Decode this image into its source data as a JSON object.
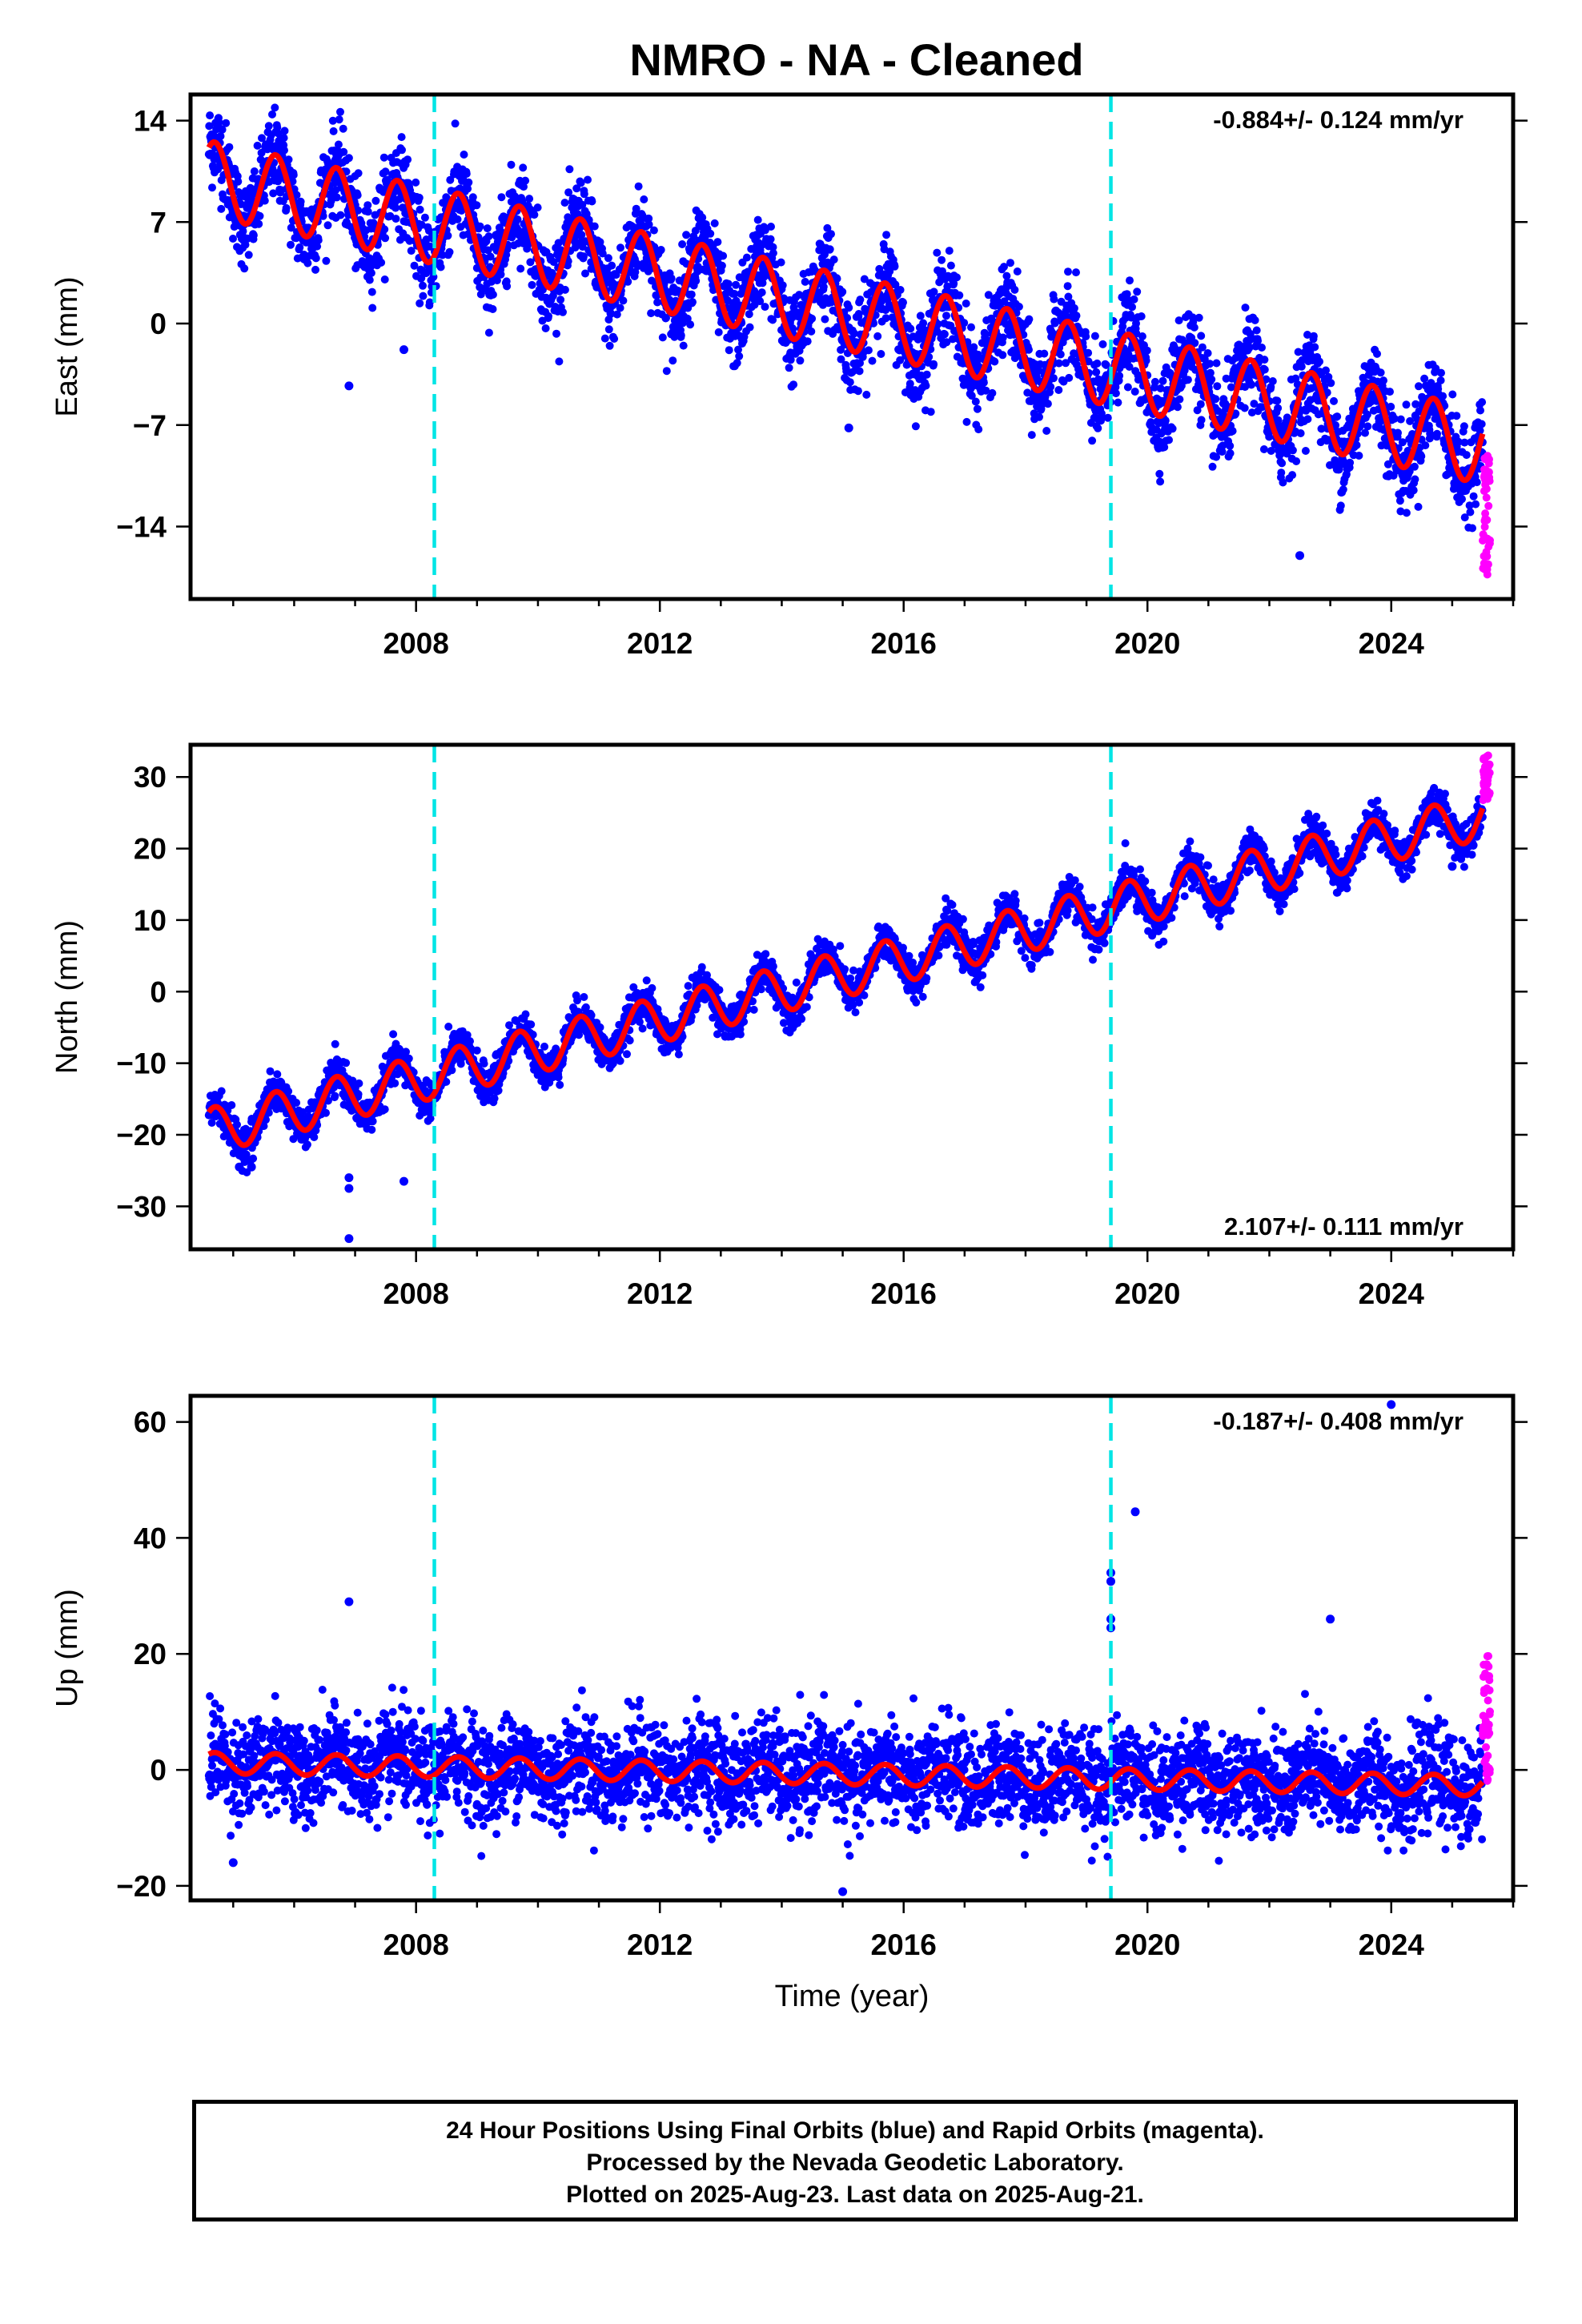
{
  "title": "NMRO  - NA - Cleaned",
  "footer": {
    "line1": "24 Hour Positions Using Final Orbits (blue) and Rapid Orbits (magenta).",
    "line2": "Processed by the Nevada Geodetic Laboratory.",
    "line3": "Plotted on 2025-Aug-23. Last data on 2025-Aug-21."
  },
  "colors": {
    "final_orbits": "#0000ff",
    "rapid_orbits": "#ff00ff",
    "model_fit": "#ff0000",
    "equipment_change": "#00e5e5"
  },
  "chart_data": [
    {
      "type": "scatter",
      "xlabel": "",
      "ylabel": "East (mm)",
      "xlim": [
        2004.3,
        2026.0
      ],
      "ylim": [
        -19.0,
        15.8
      ],
      "yticks": [
        14,
        7,
        0,
        -7,
        -14
      ],
      "xticks": [
        2008,
        2012,
        2016,
        2020,
        2024
      ],
      "rate_text": "-0.884+/- 0.124 mm/yr",
      "rate_position": "top-right",
      "vertical_lines": [
        2008.3,
        2019.4
      ],
      "series": [
        {
          "color": "blue",
          "model": {
            "slope": -0.884,
            "intercept": 10.0,
            "reference_year": 2004.6,
            "annual_amplitude": 2.6,
            "noise": 1.5
          },
          "x_range": [
            2004.6,
            2025.5
          ]
        },
        {
          "color": "magenta",
          "x_range": [
            2025.5,
            2025.62
          ],
          "y_range": [
            -17.5,
            -9.0
          ]
        }
      ],
      "outliers": [
        [
          2006.9,
          -4.3
        ],
        [
          2007.8,
          -1.8
        ],
        [
          2015.1,
          -7.2
        ],
        [
          2022.5,
          -16.0
        ]
      ]
    },
    {
      "type": "scatter",
      "xlabel": "",
      "ylabel": "North (mm)",
      "xlim": [
        2004.3,
        2026.0
      ],
      "ylim": [
        -36.0,
        34.5
      ],
      "yticks": [
        30,
        20,
        10,
        0,
        -10,
        -20,
        -30
      ],
      "xticks": [
        2008,
        2012,
        2016,
        2020,
        2024
      ],
      "rate_text": "2.107+/- 0.111 mm/yr",
      "rate_position": "bottom-right",
      "vertical_lines": [
        2008.3,
        2019.4
      ],
      "series": [
        {
          "color": "blue",
          "model": {
            "slope": 2.107,
            "intercept": -19.5,
            "reference_year": 2004.6,
            "annual_amplitude": 3.2,
            "noise": 1.3
          },
          "x_range": [
            2004.6,
            2025.5
          ]
        },
        {
          "color": "magenta",
          "x_range": [
            2025.5,
            2025.62
          ],
          "y_range": [
            26.5,
            33.0
          ]
        }
      ],
      "outliers": [
        [
          2005.1,
          -24.5
        ],
        [
          2005.3,
          -24.5
        ],
        [
          2006.9,
          -26.0
        ],
        [
          2006.9,
          -27.5
        ],
        [
          2006.9,
          -34.5
        ],
        [
          2007.8,
          -26.5
        ],
        [
          2025.0,
          17.5
        ]
      ]
    },
    {
      "type": "scatter",
      "xlabel": "Time (year)",
      "ylabel": "Up (mm)",
      "xlim": [
        2004.3,
        2026.0
      ],
      "ylim": [
        -22.5,
        64.5
      ],
      "yticks": [
        60,
        40,
        20,
        0,
        -20
      ],
      "xticks": [
        2008,
        2012,
        2016,
        2020,
        2024
      ],
      "rate_text": "-0.187+/- 0.408 mm/yr",
      "rate_position": "top-right",
      "vertical_lines": [
        2008.3,
        2019.4
      ],
      "series": [
        {
          "color": "blue",
          "model": {
            "slope": -0.187,
            "intercept": 1.2,
            "reference_year": 2004.6,
            "annual_amplitude": 1.8,
            "noise": 4.2
          },
          "x_range": [
            2004.6,
            2025.5
          ]
        },
        {
          "color": "magenta",
          "x_range": [
            2025.5,
            2025.62
          ],
          "y_range": [
            -3.0,
            20.0
          ]
        }
      ],
      "outliers": [
        [
          2006.9,
          29.0
        ],
        [
          2015.0,
          -21.0
        ],
        [
          2019.4,
          34.0
        ],
        [
          2019.4,
          32.5
        ],
        [
          2019.4,
          26.0
        ],
        [
          2019.4,
          24.5
        ],
        [
          2019.8,
          44.5
        ],
        [
          2023.0,
          26.0
        ],
        [
          2024.0,
          63.0
        ],
        [
          2005.0,
          -16.0
        ]
      ]
    }
  ]
}
